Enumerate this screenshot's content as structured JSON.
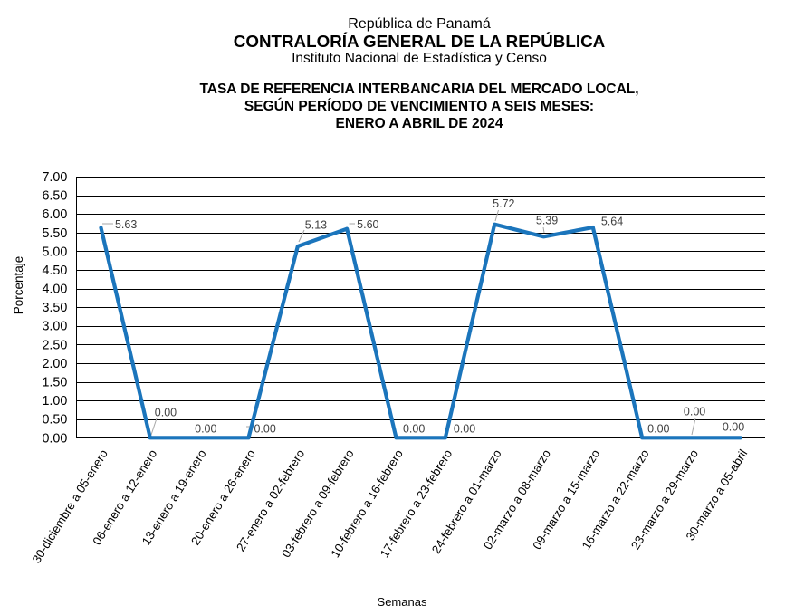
{
  "header": {
    "line1": "República de Panamá",
    "line2": "CONTRALORÍA GENERAL DE LA REPÚBLICA",
    "line3": "Instituto  Nacional de Estadística y Censo"
  },
  "title": {
    "line1": "TASA DE REFERENCIA INTERBANCARIA DEL MERCADO LOCAL,",
    "line2": "SEGÚN PERÍODO DE VENCIMIENTO A SEIS MESES:",
    "line3": "ENERO A ABRIL DE 2024"
  },
  "chart_data": {
    "type": "line",
    "title": "TASA DE REFERENCIA INTERBANCARIA DEL MERCADO LOCAL, SEGÚN PERÍODO DE VENCIMIENTO A SEIS MESES: ENERO A ABRIL DE 2024",
    "categories": [
      "30-diciembre a 05-enero",
      "06-enero a 12-enero",
      "13-enero a 19-enero",
      "20-enero a 26-enero",
      "27-enero a 02-febrero",
      "03-febrero a 09-febrero",
      "10-febrero a 16-febrero",
      "17-febrero a 23-febrero",
      "24-febrero a 01-marzo",
      "02-marzo a 08-marzo",
      "09-marzo a 15-marzo",
      "16-marzo a 22-marzo",
      "23-marzo a 29-marzo",
      "30-marzo a 05-abril"
    ],
    "values": [
      5.63,
      0,
      0,
      0,
      5.13,
      5.6,
      0,
      0,
      5.72,
      5.39,
      5.64,
      0,
      0,
      0
    ],
    "value_labels": [
      "5.63",
      "0.00",
      "0.00",
      "0.00",
      "5.13",
      "5.60",
      "0.00",
      "0.00",
      "5.72",
      "5.39",
      "5.64",
      "0.00",
      "0.00",
      "0.00"
    ],
    "xlabel": "Semanas",
    "ylabel": "Porcentaje",
    "ylim": [
      0,
      7
    ],
    "ytick_step": 0.5,
    "ytick_labels": [
      "0.00",
      "0.50",
      "1.00",
      "1.50",
      "2.00",
      "2.50",
      "3.00",
      "3.50",
      "4.00",
      "4.50",
      "5.00",
      "5.50",
      "6.00",
      "6.50",
      "7.00"
    ],
    "grid": "horizontal",
    "legend": "none",
    "line_color": "#1B75BC",
    "label_color": "#404040",
    "leader_color": "#A6A6A6",
    "axis_color": "#000000"
  }
}
